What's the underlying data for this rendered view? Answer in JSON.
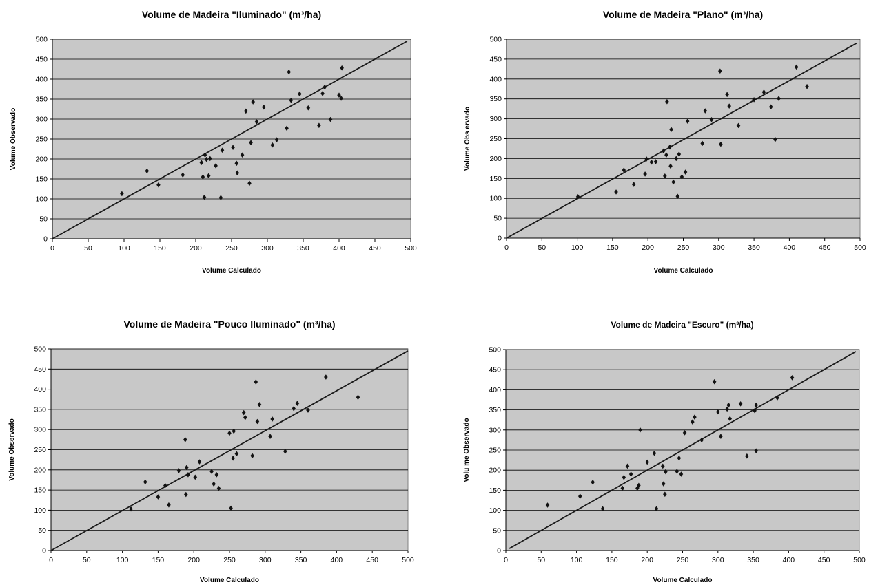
{
  "chart_data": [
    {
      "type": "scatter",
      "title": "Volume de Madeira \"Iluminado\" (m³/ha)",
      "xlabel": "Volume Calculado",
      "ylabel": "Volume Observado",
      "xlim": [
        0,
        500
      ],
      "ylim": [
        0,
        500
      ],
      "x_ticks": [
        "0",
        "50",
        "100",
        "150",
        "200",
        "250",
        "300",
        "350",
        "400",
        "450",
        "500"
      ],
      "y_ticks": [
        "0",
        "50",
        "100",
        "150",
        "200",
        "250",
        "300",
        "350",
        "400",
        "450",
        "500"
      ],
      "grid": "horizontal",
      "reference_line": [
        [
          0,
          0
        ],
        [
          495,
          495
        ]
      ],
      "points": [
        [
          97,
          113
        ],
        [
          132,
          170
        ],
        [
          148,
          135
        ],
        [
          182,
          160
        ],
        [
          208,
          191
        ],
        [
          210,
          155
        ],
        [
          212,
          104
        ],
        [
          213,
          210
        ],
        [
          215,
          199
        ],
        [
          218,
          158
        ],
        [
          220,
          201
        ],
        [
          228,
          183
        ],
        [
          235,
          103
        ],
        [
          237,
          222
        ],
        [
          252,
          229
        ],
        [
          257,
          189
        ],
        [
          258,
          165
        ],
        [
          265,
          210
        ],
        [
          270,
          320
        ],
        [
          275,
          139
        ],
        [
          277,
          241
        ],
        [
          280,
          343
        ],
        [
          285,
          293
        ],
        [
          295,
          330
        ],
        [
          307,
          235
        ],
        [
          313,
          248
        ],
        [
          327,
          277
        ],
        [
          330,
          418
        ],
        [
          333,
          347
        ],
        [
          345,
          363
        ],
        [
          357,
          328
        ],
        [
          372,
          284
        ],
        [
          377,
          364
        ],
        [
          380,
          380
        ],
        [
          388,
          299
        ],
        [
          400,
          360
        ],
        [
          403,
          352
        ],
        [
          404,
          428
        ]
      ]
    },
    {
      "type": "scatter",
      "title": "Volume de Madeira \"Plano\" (m³/ha)",
      "xlabel": "Volume Calculado",
      "ylabel": "Volume Obs ervado",
      "xlim": [
        0,
        500
      ],
      "ylim": [
        0,
        500
      ],
      "x_ticks": [
        "0",
        "50",
        "100",
        "150",
        "200",
        "250",
        "300",
        "350",
        "400",
        "450",
        "500"
      ],
      "y_ticks": [
        "0",
        "50",
        "100",
        "150",
        "200",
        "250",
        "300",
        "350",
        "400",
        "450",
        "500"
      ],
      "grid": "horizontal",
      "reference_line": [
        [
          0,
          0
        ],
        [
          495,
          490
        ]
      ],
      "points": [
        [
          101,
          104
        ],
        [
          155,
          116
        ],
        [
          166,
          171
        ],
        [
          180,
          135
        ],
        [
          196,
          161
        ],
        [
          198,
          199
        ],
        [
          205,
          191
        ],
        [
          211,
          192
        ],
        [
          222,
          219
        ],
        [
          224,
          156
        ],
        [
          226,
          209
        ],
        [
          227,
          343
        ],
        [
          231,
          229
        ],
        [
          232,
          181
        ],
        [
          233,
          273
        ],
        [
          236,
          141
        ],
        [
          240,
          200
        ],
        [
          242,
          105
        ],
        [
          244,
          211
        ],
        [
          248,
          154
        ],
        [
          253,
          166
        ],
        [
          256,
          294
        ],
        [
          277,
          238
        ],
        [
          281,
          320
        ],
        [
          290,
          298
        ],
        [
          302,
          420
        ],
        [
          303,
          236
        ],
        [
          312,
          361
        ],
        [
          315,
          332
        ],
        [
          328,
          283
        ],
        [
          350,
          348
        ],
        [
          364,
          367
        ],
        [
          374,
          330
        ],
        [
          380,
          248
        ],
        [
          385,
          351
        ],
        [
          410,
          430
        ],
        [
          425,
          381
        ]
      ]
    },
    {
      "type": "scatter",
      "title": "Volume de Madeira \"Pouco Iluminado\" (m³/ha)",
      "xlabel": "Volume Calculado",
      "ylabel": "Volume Observado",
      "xlim": [
        0,
        500
      ],
      "ylim": [
        0,
        500
      ],
      "x_ticks": [
        "0",
        "50",
        "100",
        "150",
        "200",
        "250",
        "300",
        "350",
        "400",
        "450",
        "500"
      ],
      "y_ticks": [
        "0",
        "50",
        "100",
        "150",
        "200",
        "250",
        "300",
        "350",
        "400",
        "450",
        "500"
      ],
      "grid": "horizontal",
      "reference_line": [
        [
          0,
          0
        ],
        [
          500,
          495
        ]
      ],
      "points": [
        [
          112,
          103
        ],
        [
          132,
          170
        ],
        [
          150,
          133
        ],
        [
          160,
          161
        ],
        [
          165,
          113
        ],
        [
          179,
          198
        ],
        [
          188,
          275
        ],
        [
          189,
          139
        ],
        [
          190,
          206
        ],
        [
          192,
          188
        ],
        [
          202,
          182
        ],
        [
          208,
          220
        ],
        [
          225,
          196
        ],
        [
          228,
          165
        ],
        [
          232,
          188
        ],
        [
          235,
          154
        ],
        [
          250,
          291
        ],
        [
          252,
          105
        ],
        [
          255,
          229
        ],
        [
          256,
          296
        ],
        [
          260,
          240
        ],
        [
          270,
          342
        ],
        [
          272,
          330
        ],
        [
          282,
          235
        ],
        [
          287,
          418
        ],
        [
          289,
          320
        ],
        [
          292,
          362
        ],
        [
          307,
          283
        ],
        [
          310,
          326
        ],
        [
          328,
          246
        ],
        [
          340,
          352
        ],
        [
          345,
          365
        ],
        [
          360,
          348
        ],
        [
          385,
          430
        ],
        [
          430,
          380
        ]
      ]
    },
    {
      "type": "scatter",
      "title": "Volume de Madeira \"Escuro\" (m³/ha)",
      "xlabel": "Volume Calculado",
      "ylabel": "Volu me Observado",
      "xlim": [
        0,
        500
      ],
      "ylim": [
        0,
        500
      ],
      "x_ticks": [
        "0",
        "50",
        "100",
        "150",
        "200",
        "250",
        "300",
        "350",
        "400",
        "450",
        "500"
      ],
      "y_ticks": [
        "0",
        "50",
        "100",
        "150",
        "200",
        "250",
        "300",
        "350",
        "400",
        "450",
        "500"
      ],
      "grid": "horizontal",
      "reference_line": [
        [
          5,
          5
        ],
        [
          495,
          495
        ]
      ],
      "points": [
        [
          59,
          113
        ],
        [
          105,
          135
        ],
        [
          123,
          170
        ],
        [
          137,
          104
        ],
        [
          165,
          155
        ],
        [
          167,
          182
        ],
        [
          172,
          210
        ],
        [
          177,
          190
        ],
        [
          186,
          155
        ],
        [
          188,
          162
        ],
        [
          190,
          300
        ],
        [
          200,
          220
        ],
        [
          210,
          242
        ],
        [
          213,
          104
        ],
        [
          222,
          210
        ],
        [
          223,
          166
        ],
        [
          225,
          140
        ],
        [
          226,
          196
        ],
        [
          242,
          197
        ],
        [
          245,
          230
        ],
        [
          248,
          190
        ],
        [
          253,
          293
        ],
        [
          264,
          320
        ],
        [
          267,
          332
        ],
        [
          277,
          275
        ],
        [
          295,
          420
        ],
        [
          300,
          345
        ],
        [
          304,
          284
        ],
        [
          313,
          352
        ],
        [
          315,
          362
        ],
        [
          317,
          328
        ],
        [
          332,
          365
        ],
        [
          341,
          235
        ],
        [
          352,
          348
        ],
        [
          354,
          362
        ],
        [
          354,
          248
        ],
        [
          384,
          380
        ],
        [
          405,
          430
        ]
      ]
    }
  ]
}
